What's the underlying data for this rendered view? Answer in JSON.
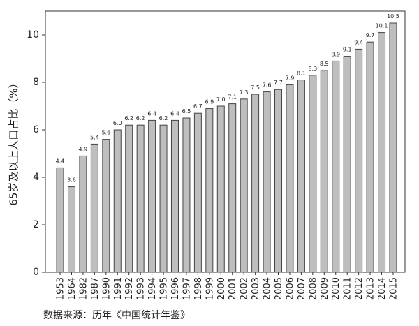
{
  "chart_data": {
    "type": "bar",
    "y_label": "65岁及以上人口占比（%）",
    "source": "数据来源：历年《中国统计年鉴》",
    "categories": [
      "1953",
      "1964",
      "1982",
      "1987",
      "1990",
      "1991",
      "1992",
      "1993",
      "1994",
      "1995",
      "1996",
      "1997",
      "1998",
      "1999",
      "2000",
      "2001",
      "2002",
      "2003",
      "2004",
      "2005",
      "2006",
      "2007",
      "2008",
      "2009",
      "2010",
      "2011",
      "2012",
      "2013",
      "2014",
      "2015"
    ],
    "values": [
      4.4,
      3.6,
      4.9,
      5.4,
      5.6,
      6.0,
      6.2,
      6.2,
      6.4,
      6.2,
      6.4,
      6.5,
      6.7,
      6.9,
      7.0,
      7.1,
      7.3,
      7.5,
      7.6,
      7.7,
      7.9,
      8.1,
      8.3,
      8.5,
      8.9,
      9.1,
      9.4,
      9.7,
      10.1,
      10.5
    ],
    "value_labels": [
      "4.4",
      "3.6",
      "4.9",
      "5.4",
      "5.6",
      "6.0",
      "6.2",
      "6.2",
      "6.4",
      "6.2",
      "6.4",
      "6.5",
      "6.7",
      "6.9",
      "7.0",
      "7.1",
      "7.3",
      "7.5",
      "7.6",
      "7.7",
      "7.9",
      "8.1",
      "8.3",
      "8.5",
      "8.9",
      "9.1",
      "9.4",
      "9.7",
      "10.1",
      "10.5"
    ],
    "color": "#bebebe",
    "ylim": [
      0,
      11
    ],
    "yticks": [
      0,
      2,
      4,
      6,
      8,
      10
    ],
    "grid": false
  }
}
